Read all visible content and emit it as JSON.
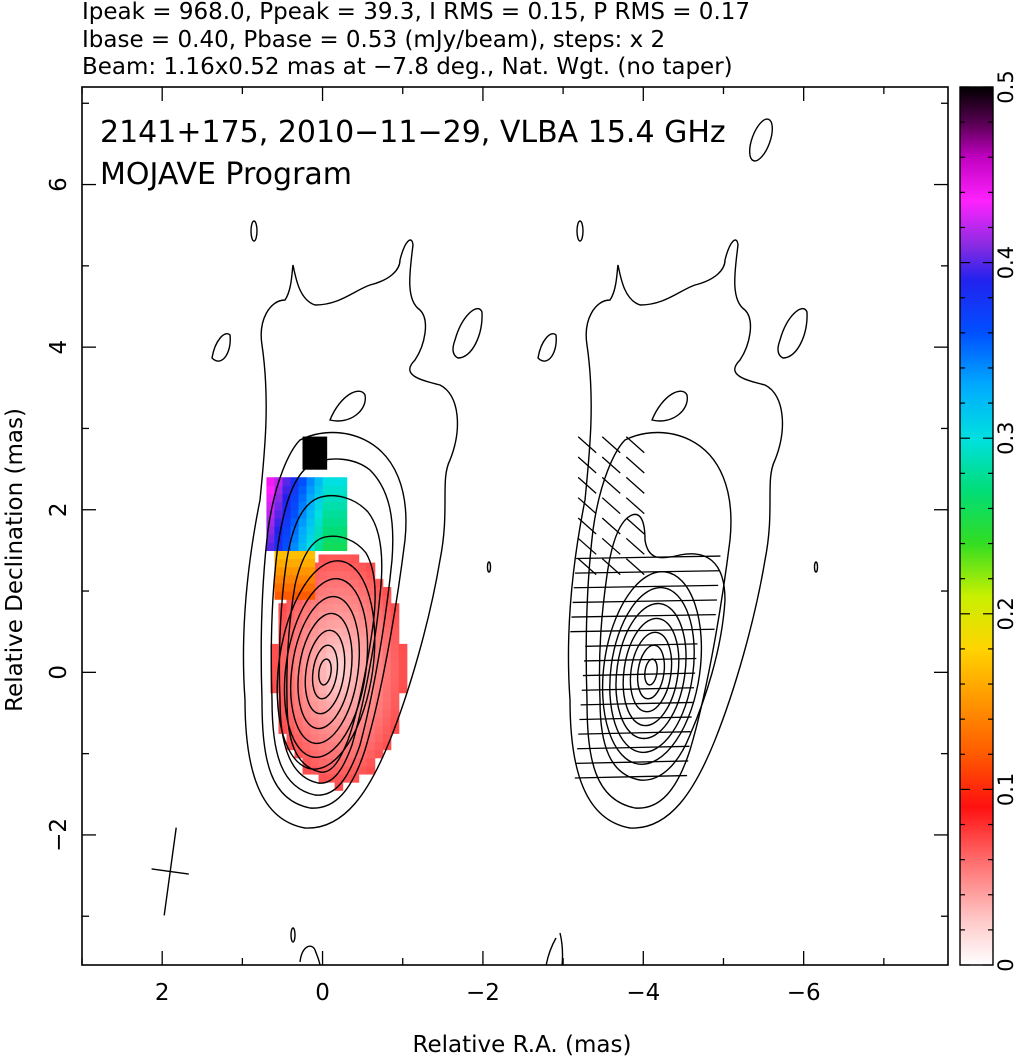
{
  "header": {
    "line1": "Ipeak = 968.0, Ppeak = 39.3, I RMS = 0.15, P RMS = 0.17",
    "line2": "Ibase = 0.40, Pbase = 0.53 (mJy/beam), steps: x 2",
    "line3": "Beam: 1.16x0.52 mas at −7.8 deg., Nat. Wgt. (no taper)"
  },
  "chart_data": {
    "type": "heatmap",
    "title_line1": "2141+175, 2010−11−29, VLBA 15.4 GHz",
    "title_line2": "MOJAVE Program",
    "xlabel": "Relative R.A. (mas)",
    "ylabel": "Relative Declination (mas)",
    "xlim": [
      3.0,
      -7.8
    ],
    "ylim": [
      -3.6,
      7.2
    ],
    "xticks": [
      2,
      0,
      -2,
      -4,
      -6
    ],
    "xtick_labels": [
      "2",
      "0",
      "−2",
      "−4",
      "−6"
    ],
    "yticks": [
      -2,
      0,
      2,
      4,
      6
    ],
    "ytick_labels": [
      "−2",
      "0",
      "2",
      "4",
      "6"
    ],
    "colorbar": {
      "label_values": [
        0,
        0.1,
        0.2,
        0.3,
        0.4,
        0.5
      ],
      "label_texts": [
        "0",
        "0.1",
        "0.2",
        "0.3",
        "0.4",
        "0.5"
      ],
      "min": 0,
      "max": 0.5
    },
    "beam": {
      "major_mas": 1.16,
      "minor_mas": 0.52,
      "pa_deg": -7.8,
      "center": [
        1.9,
        -2.45
      ]
    },
    "ipeak_mjy_per_beam": 968.0,
    "ppeak_mjy_per_beam": 39.3,
    "contour_base_mjy_per_beam": 0.4,
    "contour_step_factor": 2,
    "panels": [
      {
        "name": "total intensity + fractional polarization",
        "core": [
          0,
          0
        ]
      },
      {
        "name": "polarization vectors",
        "core": [
          -4,
          0
        ]
      }
    ],
    "fractional_polarization_regions": [
      {
        "region": "core",
        "x_range": [
          0.65,
          -1.0
        ],
        "y_range": [
          -1.45,
          1.45
        ],
        "value": 0.05
      },
      {
        "region": "north-east edge",
        "x_range": [
          0.6,
          -0.25
        ],
        "y_range": [
          0.9,
          1.8
        ],
        "value": 0.17
      },
      {
        "region": "inner jet",
        "x_range": [
          0.7,
          -0.25
        ],
        "y_range": [
          1.5,
          2.4
        ],
        "value": 0.32
      },
      {
        "region": "jet tip",
        "x_range": [
          0.25,
          -0.05
        ],
        "y_range": [
          2.5,
          2.9
        ],
        "value": 0.5
      }
    ]
  }
}
